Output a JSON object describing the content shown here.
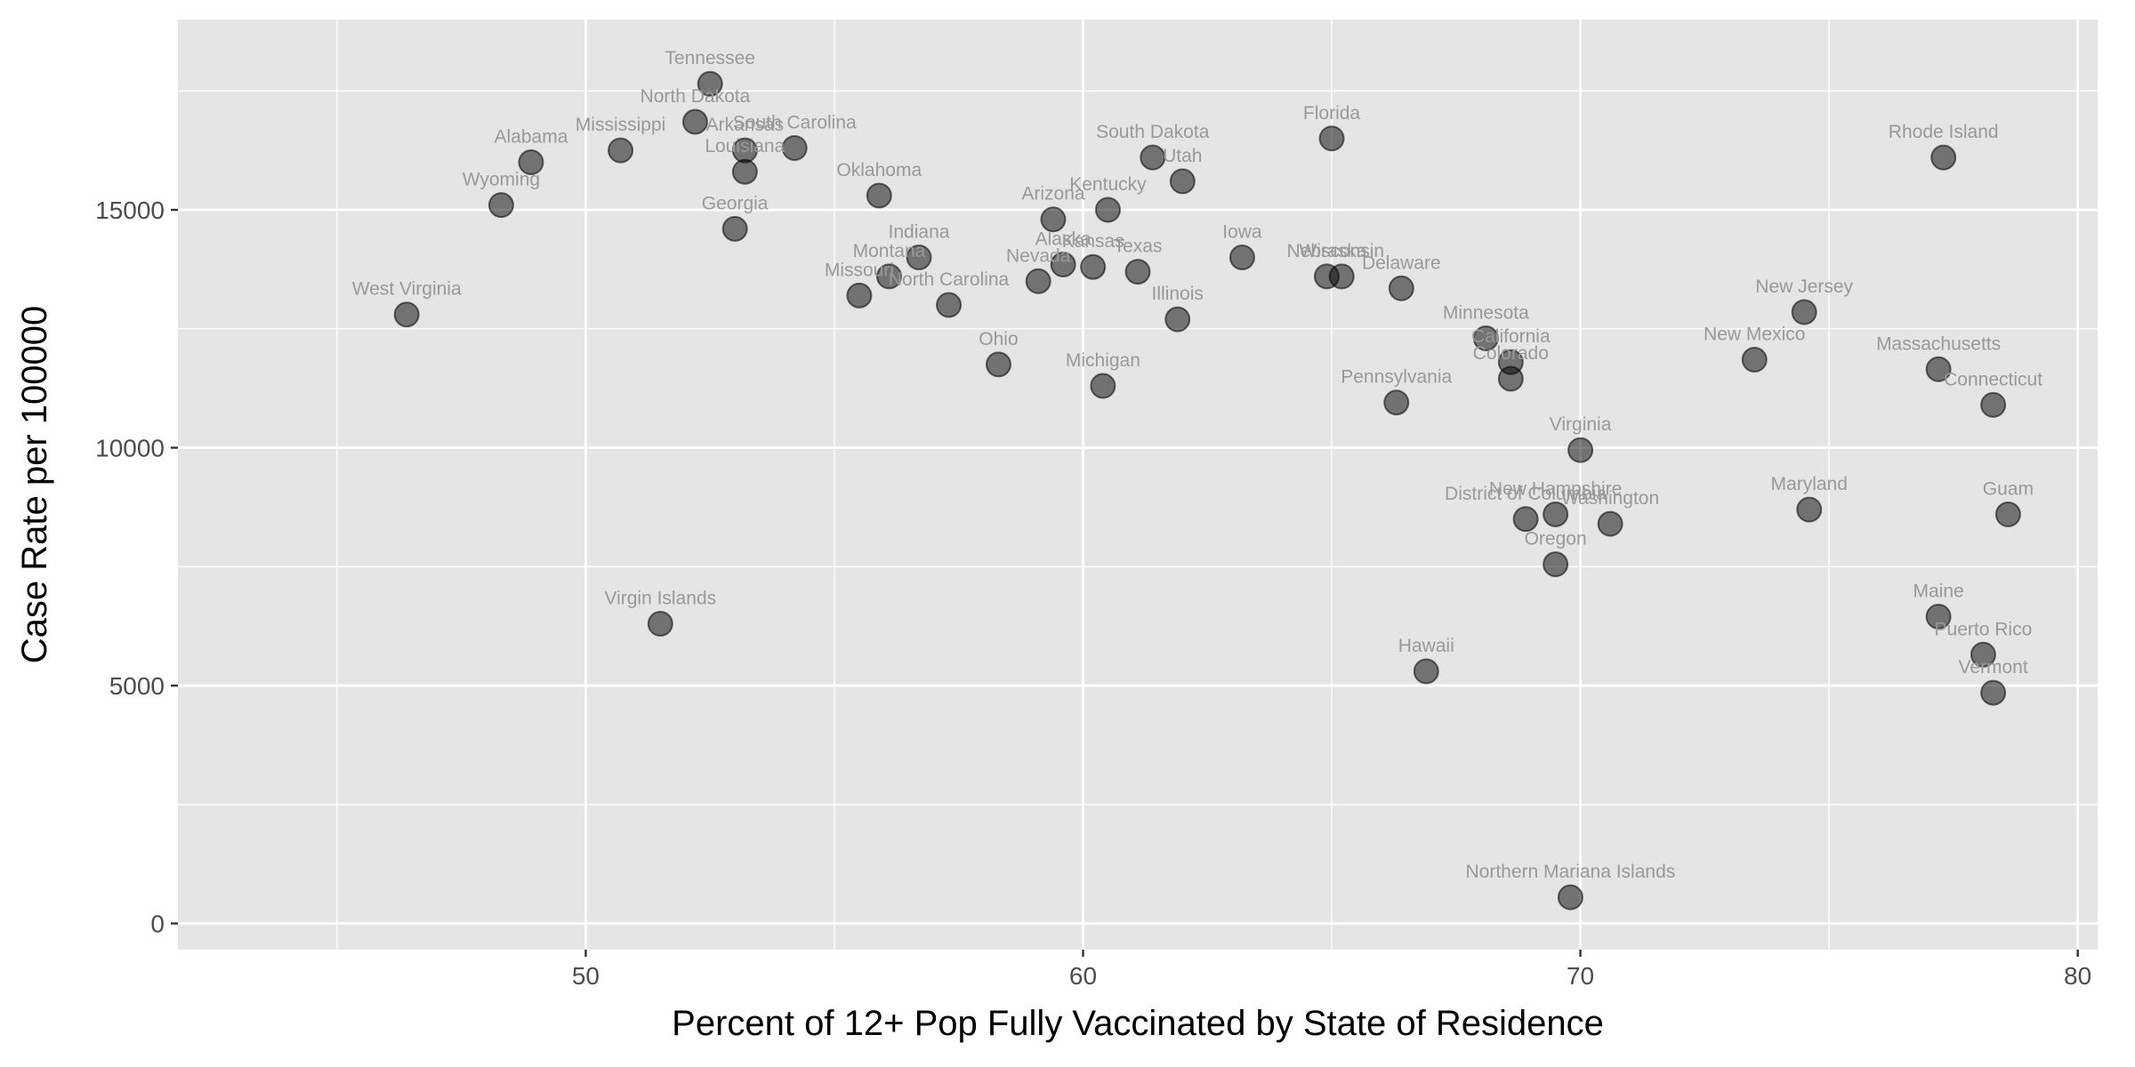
{
  "chart_data": {
    "type": "scatter",
    "title": "",
    "xlabel": "Percent of 12+ Pop Fully Vaccinated by State of Residence",
    "ylabel": "Case Rate per 100000",
    "xlim": [
      41.8,
      80.4
    ],
    "ylim": [
      -550,
      19000
    ],
    "x_ticks": [
      50,
      60,
      70,
      80
    ],
    "y_ticks": [
      0,
      5000,
      10000,
      15000
    ],
    "grid": true,
    "legend": "none",
    "colors": {
      "panel_background": "#e5e5e5",
      "grid_line": "#ffffff",
      "point_fill": "#000000",
      "point_opacity": 0.5,
      "label_text": "#999999"
    },
    "points": [
      {
        "label": "Tennessee",
        "x": 52.5,
        "y": 17650
      },
      {
        "label": "North Dakota",
        "x": 52.2,
        "y": 16850
      },
      {
        "label": "Alabama",
        "x": 48.9,
        "y": 16000
      },
      {
        "label": "Mississippi",
        "x": 50.7,
        "y": 16250
      },
      {
        "label": "Arkansas",
        "x": 53.2,
        "y": 16250
      },
      {
        "label": "South Carolina",
        "x": 54.2,
        "y": 16300
      },
      {
        "label": "Louisiana",
        "x": 53.2,
        "y": 15800
      },
      {
        "label": "Wyoming",
        "x": 48.3,
        "y": 15100
      },
      {
        "label": "Georgia",
        "x": 53.0,
        "y": 14600
      },
      {
        "label": "Oklahoma",
        "x": 55.9,
        "y": 15300
      },
      {
        "label": "Indiana",
        "x": 56.7,
        "y": 14000
      },
      {
        "label": "Montana",
        "x": 56.1,
        "y": 13600
      },
      {
        "label": "Missouri",
        "x": 55.5,
        "y": 13200
      },
      {
        "label": "North Carolina",
        "x": 57.3,
        "y": 13000
      },
      {
        "label": "West Virginia",
        "x": 46.4,
        "y": 12800
      },
      {
        "label": "Virgin Islands",
        "x": 51.5,
        "y": 6300
      },
      {
        "label": "Ohio",
        "x": 58.3,
        "y": 11750
      },
      {
        "label": "Arizona",
        "x": 59.4,
        "y": 14800
      },
      {
        "label": "Alaska",
        "x": 59.6,
        "y": 13850
      },
      {
        "label": "Nevada",
        "x": 59.1,
        "y": 13500
      },
      {
        "label": "Kansas",
        "x": 60.2,
        "y": 13800
      },
      {
        "label": "Kentucky",
        "x": 60.5,
        "y": 15000
      },
      {
        "label": "Texas",
        "x": 61.1,
        "y": 13700
      },
      {
        "label": "Michigan",
        "x": 60.4,
        "y": 11300
      },
      {
        "label": "South Dakota",
        "x": 61.4,
        "y": 16100
      },
      {
        "label": "Utah",
        "x": 62.0,
        "y": 15600
      },
      {
        "label": "Illinois",
        "x": 61.9,
        "y": 12700
      },
      {
        "label": "Iowa",
        "x": 63.2,
        "y": 14000
      },
      {
        "label": "Florida",
        "x": 65.0,
        "y": 16500
      },
      {
        "label": "Nebraska",
        "x": 64.9,
        "y": 13600
      },
      {
        "label": "Wisconsin",
        "x": 65.2,
        "y": 13600
      },
      {
        "label": "Delaware",
        "x": 66.4,
        "y": 13350
      },
      {
        "label": "Pennsylvania",
        "x": 66.3,
        "y": 10950
      },
      {
        "label": "Hawaii",
        "x": 66.9,
        "y": 5300
      },
      {
        "label": "Minnesota",
        "x": 68.1,
        "y": 12300
      },
      {
        "label": "California",
        "x": 68.6,
        "y": 11800
      },
      {
        "label": "Colorado",
        "x": 68.6,
        "y": 11450
      },
      {
        "label": "District of Columbia",
        "x": 68.9,
        "y": 8500
      },
      {
        "label": "New Hampshire",
        "x": 69.5,
        "y": 8600
      },
      {
        "label": "Washington",
        "x": 70.6,
        "y": 8400
      },
      {
        "label": "Oregon",
        "x": 69.5,
        "y": 7550
      },
      {
        "label": "Virginia",
        "x": 70.0,
        "y": 9950
      },
      {
        "label": "Northern Mariana Islands",
        "x": 69.8,
        "y": 550
      },
      {
        "label": "New Jersey",
        "x": 74.5,
        "y": 12850
      },
      {
        "label": "New Mexico",
        "x": 73.5,
        "y": 11850
      },
      {
        "label": "Maryland",
        "x": 74.6,
        "y": 8700
      },
      {
        "label": "Rhode Island",
        "x": 77.3,
        "y": 16100
      },
      {
        "label": "Massachusetts",
        "x": 77.2,
        "y": 11650
      },
      {
        "label": "Connecticut",
        "x": 78.3,
        "y": 10900
      },
      {
        "label": "Guam",
        "x": 78.6,
        "y": 8600
      },
      {
        "label": "Maine",
        "x": 77.2,
        "y": 6450
      },
      {
        "label": "Puerto Rico",
        "x": 78.1,
        "y": 5650
      },
      {
        "label": "Vermont",
        "x": 78.3,
        "y": 4850
      }
    ]
  }
}
